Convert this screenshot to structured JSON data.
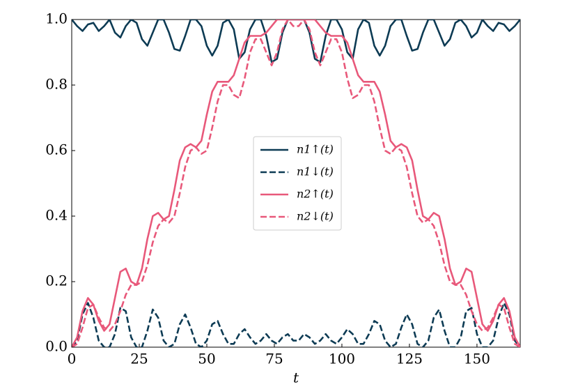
{
  "chart_data": {
    "type": "line",
    "xlabel": "t",
    "x": [
      0,
      2,
      4,
      6,
      8,
      10,
      12,
      14,
      16,
      18,
      20,
      22,
      24,
      26,
      28,
      30,
      32,
      34,
      36,
      38,
      40,
      42,
      44,
      46,
      48,
      50,
      52,
      54,
      56,
      58,
      60,
      62,
      64,
      66,
      68,
      70,
      72,
      74,
      76,
      78,
      80,
      82,
      84,
      86,
      88,
      90,
      92,
      94,
      96,
      98,
      100,
      102,
      104,
      106,
      108,
      110,
      112,
      114,
      116,
      118,
      120,
      122,
      124,
      126,
      128,
      130,
      132,
      134,
      136,
      138,
      140,
      142,
      144,
      146,
      148,
      150,
      152,
      154,
      156,
      158,
      160,
      162,
      164,
      166
    ],
    "series": [
      {
        "name": "n1↑(t)",
        "color": "#0d3b54",
        "linestyle": "solid",
        "values": [
          1.0,
          0.98,
          0.965,
          0.985,
          0.99,
          0.965,
          0.98,
          1.0,
          0.96,
          0.945,
          0.98,
          1.0,
          0.99,
          0.94,
          0.92,
          0.96,
          1.0,
          1.0,
          0.96,
          0.91,
          0.905,
          0.95,
          1.0,
          1.0,
          0.98,
          0.92,
          0.89,
          0.92,
          0.99,
          1.0,
          0.97,
          0.88,
          0.9,
          0.97,
          1.0,
          1.0,
          0.95,
          0.87,
          0.88,
          0.96,
          1.0,
          1.0,
          1.0,
          1.0,
          0.96,
          0.88,
          0.87,
          0.95,
          1.0,
          1.0,
          0.97,
          0.9,
          0.88,
          0.97,
          1.0,
          0.99,
          0.92,
          0.89,
          0.92,
          0.98,
          1.0,
          1.0,
          0.95,
          0.905,
          0.91,
          0.96,
          1.0,
          1.0,
          0.96,
          0.92,
          0.94,
          0.99,
          1.0,
          0.98,
          0.945,
          0.96,
          1.0,
          0.98,
          0.965,
          0.99,
          0.985,
          0.965,
          0.98,
          1.0
        ]
      },
      {
        "name": "n1↓(t)",
        "color": "#0d3b54",
        "linestyle": "dashed",
        "values": [
          0,
          0.02,
          0.1,
          0.135,
          0.09,
          0.02,
          0,
          0,
          0.04,
          0.12,
          0.11,
          0.03,
          0,
          0,
          0.05,
          0.115,
          0.09,
          0.02,
          0,
          0.01,
          0.07,
          0.1,
          0.06,
          0.01,
          0,
          0.02,
          0.07,
          0.08,
          0.04,
          0.01,
          0.01,
          0.04,
          0.055,
          0.03,
          0.01,
          0.02,
          0.04,
          0.02,
          0.01,
          0.03,
          0.04,
          0.02,
          0.02,
          0.04,
          0.03,
          0.01,
          0.02,
          0.04,
          0.02,
          0.01,
          0.03,
          0.055,
          0.04,
          0.01,
          0.01,
          0.04,
          0.08,
          0.07,
          0.02,
          0,
          0.01,
          0.06,
          0.1,
          0.07,
          0.01,
          0,
          0.02,
          0.09,
          0.115,
          0.05,
          0,
          0,
          0.03,
          0.11,
          0.12,
          0.04,
          0,
          0,
          0.02,
          0.09,
          0.135,
          0.1,
          0.02,
          0
        ]
      },
      {
        "name": "n2↑(t)",
        "color": "#e8587a",
        "linestyle": "solid",
        "values": [
          0,
          0.03,
          0.11,
          0.15,
          0.13,
          0.08,
          0.05,
          0.07,
          0.15,
          0.23,
          0.24,
          0.2,
          0.19,
          0.24,
          0.33,
          0.4,
          0.41,
          0.39,
          0.4,
          0.48,
          0.57,
          0.61,
          0.62,
          0.61,
          0.63,
          0.71,
          0.78,
          0.81,
          0.81,
          0.81,
          0.83,
          0.88,
          0.93,
          0.95,
          0.95,
          0.95,
          0.96,
          0.98,
          1.0,
          1.0,
          1.0,
          1.0,
          1.0,
          1.0,
          1.0,
          1.0,
          0.98,
          0.96,
          0.95,
          0.95,
          0.95,
          0.93,
          0.88,
          0.83,
          0.81,
          0.81,
          0.81,
          0.78,
          0.71,
          0.63,
          0.61,
          0.62,
          0.61,
          0.57,
          0.48,
          0.4,
          0.39,
          0.41,
          0.4,
          0.33,
          0.24,
          0.19,
          0.2,
          0.24,
          0.23,
          0.15,
          0.07,
          0.05,
          0.08,
          0.13,
          0.15,
          0.11,
          0.03,
          0
        ]
      },
      {
        "name": "n2↓(t)",
        "color": "#e8587a",
        "linestyle": "dashed",
        "values": [
          0,
          0.01,
          0.06,
          0.12,
          0.13,
          0.09,
          0.06,
          0.05,
          0.07,
          0.11,
          0.16,
          0.19,
          0.19,
          0.2,
          0.25,
          0.32,
          0.37,
          0.39,
          0.38,
          0.4,
          0.47,
          0.55,
          0.6,
          0.61,
          0.59,
          0.6,
          0.67,
          0.75,
          0.8,
          0.8,
          0.77,
          0.76,
          0.82,
          0.9,
          0.94,
          0.94,
          0.9,
          0.86,
          0.9,
          0.97,
          1.0,
          0.98,
          0.98,
          1.0,
          0.97,
          0.9,
          0.86,
          0.9,
          0.94,
          0.94,
          0.9,
          0.82,
          0.76,
          0.77,
          0.8,
          0.8,
          0.75,
          0.67,
          0.6,
          0.59,
          0.61,
          0.6,
          0.55,
          0.47,
          0.4,
          0.38,
          0.39,
          0.37,
          0.32,
          0.25,
          0.2,
          0.19,
          0.19,
          0.16,
          0.11,
          0.07,
          0.05,
          0.06,
          0.09,
          0.13,
          0.12,
          0.06,
          0.01,
          0
        ]
      }
    ],
    "xlim": [
      0,
      166
    ],
    "ylim": [
      0,
      1
    ],
    "xticks": [
      0,
      25,
      50,
      75,
      100,
      125,
      150
    ],
    "yticks": [
      {
        "value": 0,
        "label": "0.0"
      },
      {
        "value": 0.2,
        "label": "0.2"
      },
      {
        "value": 0.4,
        "label": "0.4"
      },
      {
        "value": 0.6,
        "label": "0.6"
      },
      {
        "value": 0.8,
        "label": "0.8"
      },
      {
        "value": 1,
        "label": "1.0"
      }
    ],
    "grid": false,
    "legend": "center"
  }
}
